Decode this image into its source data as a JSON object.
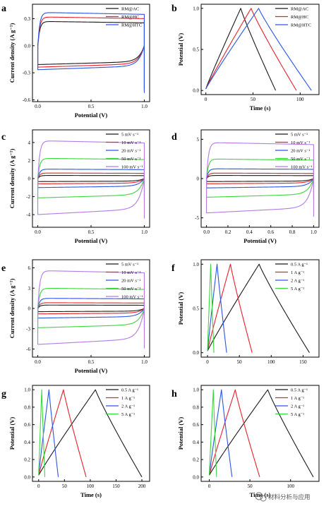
{
  "colors": {
    "black": "#1a1a1a",
    "red": "#e8202a",
    "blue": "#2a55e6",
    "green": "#3ad83a",
    "violet": "#b57ae6"
  },
  "watermark": {
    "text": "材料分析与应用",
    "icon": "wechat-icon"
  },
  "chart_data": [
    {
      "panel": "a",
      "type": "line",
      "subtype": "cyclic voltammetry",
      "xlabel": "Potential (V)",
      "ylabel": "Current density (A g⁻¹)",
      "xlim": [
        -0.05,
        1.05
      ],
      "ylim": [
        -0.62,
        0.46
      ],
      "xticks": [
        "0.0",
        "0.5",
        "1.0"
      ],
      "yticks": [
        "-0.6",
        "-0.3",
        "0.0",
        "0.3"
      ],
      "legend": "top-right",
      "series": [
        {
          "name": "RM@AC",
          "color": "black",
          "scale_pos": 0.27,
          "scale_neg": 0.22,
          "end_low": -0.48
        },
        {
          "name": "RM@HC",
          "color": "red",
          "scale_pos": 0.32,
          "scale_neg": 0.25,
          "end_low": -0.5
        },
        {
          "name": "RM@HTC",
          "color": "blue",
          "scale_pos": 0.37,
          "scale_neg": 0.28,
          "end_low": -0.52
        }
      ]
    },
    {
      "panel": "b",
      "type": "line",
      "subtype": "galvanostatic charge-discharge",
      "xlabel": "Time (s)",
      "ylabel": "Potential (V)",
      "xlim": [
        -5,
        120
      ],
      "ylim": [
        -0.05,
        1.05
      ],
      "xticks": [
        "0",
        "50",
        "100"
      ],
      "yticks": [
        "0.0",
        "0.5",
        "1.0"
      ],
      "legend": "top-right",
      "series": [
        {
          "name": "RM@AC",
          "color": "black",
          "t_peak": 37,
          "t_end": 74
        },
        {
          "name": "RM@HC",
          "color": "red",
          "t_peak": 48,
          "t_end": 96
        },
        {
          "name": "RM@HTC",
          "color": "blue",
          "t_peak": 56,
          "t_end": 112
        }
      ]
    },
    {
      "panel": "c",
      "type": "line",
      "subtype": "cyclic voltammetry",
      "xlabel": "Potential (V)",
      "ylabel": "Current density (A g⁻¹)",
      "xlim": [
        -0.05,
        1.05
      ],
      "ylim": [
        -5.4,
        5.4
      ],
      "xticks": [
        "0.0",
        "0.5",
        "1.0"
      ],
      "yticks": [
        "-4",
        "-2",
        "0",
        "2",
        "4"
      ],
      "legend": "top-right",
      "series": [
        {
          "name": "5 mV s⁻¹",
          "color": "black",
          "i": 0.35
        },
        {
          "name": "10 mV s⁻¹",
          "color": "red",
          "i": 0.62
        },
        {
          "name": "20 mV s⁻¹",
          "color": "blue",
          "i": 1.05
        },
        {
          "name": "50 mV s⁻¹",
          "color": "green",
          "i": 2.25
        },
        {
          "name": "100 mV s⁻¹",
          "color": "violet",
          "i": 4.2
        }
      ]
    },
    {
      "panel": "d",
      "type": "line",
      "subtype": "cyclic voltammetry",
      "xlabel": "Potential (V)",
      "ylabel": "",
      "xlim": [
        -0.05,
        1.05
      ],
      "ylim": [
        -6.2,
        6.2
      ],
      "xticks": [
        "0.0",
        "0.2",
        "0.4",
        "0.6",
        "0.8",
        "1.0"
      ],
      "yticks": [
        "-5",
        "0",
        "5"
      ],
      "legend": "top-right",
      "series": [
        {
          "name": "5 mV s⁻¹",
          "color": "black",
          "i": 0.4
        },
        {
          "name": "10 mV s⁻¹",
          "color": "red",
          "i": 0.7
        },
        {
          "name": "20 mV s⁻¹",
          "color": "blue",
          "i": 1.25
        },
        {
          "name": "50 mV s⁻¹",
          "color": "green",
          "i": 2.5
        },
        {
          "name": "100 mV s⁻¹",
          "color": "violet",
          "i": 4.6
        }
      ]
    },
    {
      "panel": "e",
      "type": "line",
      "subtype": "cyclic voltammetry",
      "xlabel": "Potential (V)",
      "ylabel": "Current density (A g⁻¹)",
      "xlim": [
        -0.05,
        1.05
      ],
      "ylim": [
        -7.2,
        7.2
      ],
      "xticks": [
        "0.0",
        "0.5",
        "1.0"
      ],
      "yticks": [
        "-6",
        "-3",
        "0",
        "3",
        "6"
      ],
      "legend": "top-right",
      "series": [
        {
          "name": "5 mV s⁻¹",
          "color": "black",
          "i": 0.5
        },
        {
          "name": "10 mV s⁻¹",
          "color": "red",
          "i": 0.85
        },
        {
          "name": "20 mV s⁻¹",
          "color": "blue",
          "i": 1.5
        },
        {
          "name": "50 mV s⁻¹",
          "color": "green",
          "i": 3.0
        },
        {
          "name": "100 mV s⁻¹",
          "color": "violet",
          "i": 5.6
        }
      ]
    },
    {
      "panel": "f",
      "type": "line",
      "subtype": "galvanostatic charge-discharge",
      "xlabel": "",
      "ylabel": "Potential (V)",
      "xlim": [
        -10,
        175
      ],
      "ylim": [
        -0.05,
        1.05
      ],
      "xticks": [
        "0",
        "50",
        "100",
        "150"
      ],
      "yticks": [
        "0.0",
        "0.5",
        "1.0"
      ],
      "legend": "top-right",
      "series": [
        {
          "name": "0.5 A g⁻¹",
          "color": "black",
          "t_peak": 81,
          "t_end": 160
        },
        {
          "name": "1 A g⁻¹",
          "color": "red",
          "t_peak": 36,
          "t_end": 70
        },
        {
          "name": "2 A g⁻¹",
          "color": "blue",
          "t_peak": 15,
          "t_end": 30
        },
        {
          "name": "5 A g⁻¹",
          "color": "green",
          "t_peak": 5,
          "t_end": 10
        }
      ]
    },
    {
      "panel": "g",
      "type": "line",
      "subtype": "galvanostatic charge-discharge",
      "xlabel": "Time (s)",
      "ylabel": "Potential (V)",
      "xlim": [
        -12,
        215
      ],
      "ylim": [
        -0.05,
        1.05
      ],
      "xticks": [
        "0",
        "50",
        "100",
        "150",
        "200"
      ],
      "yticks": [
        "0.0",
        "0.2",
        "0.4",
        "0.6",
        "0.8",
        "1.0"
      ],
      "legend": "top-right",
      "series": [
        {
          "name": "0.5 A g⁻¹",
          "color": "black",
          "t_peak": 110,
          "t_end": 200
        },
        {
          "name": "1 A g⁻¹",
          "color": "red",
          "t_peak": 48,
          "t_end": 92
        },
        {
          "name": "2 A g⁻¹",
          "color": "blue",
          "t_peak": 20,
          "t_end": 38
        },
        {
          "name": "5 A g⁻¹",
          "color": "green",
          "t_peak": 6,
          "t_end": 12
        }
      ]
    },
    {
      "panel": "h",
      "type": "line",
      "subtype": "galvanostatic charge-discharge",
      "xlabel": "Time (s)",
      "ylabel": "Potential (V)",
      "xlim": [
        -10,
        135
      ],
      "ylim": [
        -0.05,
        1.05
      ],
      "xticks": [
        "0",
        "50",
        "100"
      ],
      "yticks": [
        "0.0",
        "0.2",
        "0.4",
        "0.6",
        "0.8",
        "1.0"
      ],
      "legend": "top-right",
      "series": [
        {
          "name": "0.5 A g⁻¹",
          "color": "black",
          "t_peak": 72,
          "t_end": 128
        },
        {
          "name": "1 A g⁻¹",
          "color": "red",
          "t_peak": 32,
          "t_end": 62
        },
        {
          "name": "2 A g⁻¹",
          "color": "blue",
          "t_peak": 15,
          "t_end": 28
        },
        {
          "name": "5 A g⁻¹",
          "color": "green",
          "t_peak": 5,
          "t_end": 9
        }
      ]
    }
  ]
}
